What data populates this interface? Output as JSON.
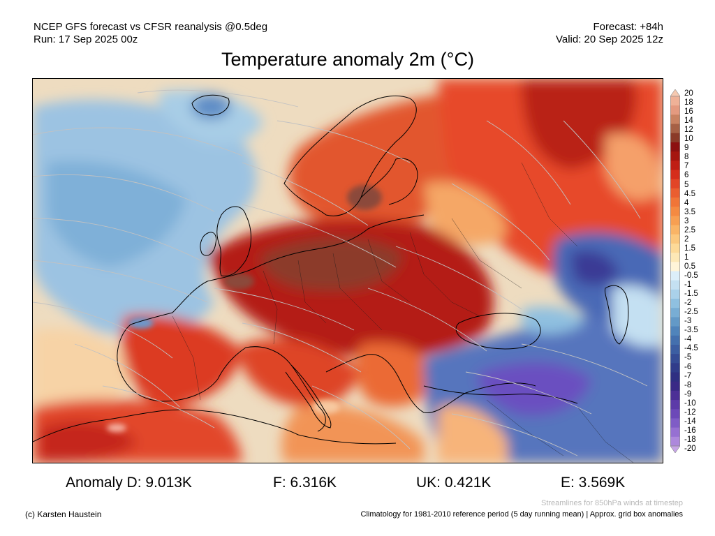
{
  "header": {
    "left_line1": "NCEP GFS forecast vs CFSR reanalysis @0.5deg",
    "left_line2": "Run: 17 Sep 2025 00z",
    "right_line1": "Forecast: +84h",
    "right_line2": "Valid: 20 Sep 2025 12z"
  },
  "title": "Temperature anomaly 2m (°C)",
  "map": {
    "region": "Europe",
    "field": "2m temperature anomaly",
    "overlay": "streamlines",
    "colors": {
      "ocean_cool": "#a9c8e2",
      "ocean_mild": "#e8dcc4",
      "warm_orange": "#f39a5a",
      "warm_red": "#d8341f",
      "hot_dark": "#9e1a12",
      "hot_brown": "#8b4a3a",
      "cold_blue": "#3f5fb0",
      "cold_purple": "#6a4fc0",
      "coastline": "#000000",
      "streamline": "#c8c8c8"
    }
  },
  "colorbar": {
    "labels": [
      "20",
      "18",
      "16",
      "14",
      "12",
      "10",
      "9",
      "8",
      "7",
      "6",
      "5",
      "4.5",
      "4",
      "3.5",
      "3",
      "2.5",
      "2",
      "1.5",
      "1",
      "0.5",
      "-0.5",
      "-1",
      "-1.5",
      "-2",
      "-2.5",
      "-3",
      "-3.5",
      "-4",
      "-4.5",
      "-5",
      "-6",
      "-7",
      "-8",
      "-9",
      "-10",
      "-12",
      "-14",
      "-16",
      "-18",
      "-20"
    ],
    "colors": [
      "#f6c9b0",
      "#efb197",
      "#e49a80",
      "#c98262",
      "#a66045",
      "#8a3a28",
      "#8c1010",
      "#a5150f",
      "#bf1e14",
      "#d52d1c",
      "#e24527",
      "#ea5e30",
      "#f07538",
      "#f48a42",
      "#f79f52",
      "#f9b466",
      "#fbc87e",
      "#fdda98",
      "#fde8b6",
      "#fff4d8",
      "#dceef9",
      "#c4e0f2",
      "#aad1ea",
      "#8fc0e0",
      "#78add4",
      "#6399c7",
      "#5084bb",
      "#4470ae",
      "#3c5ea2",
      "#354c95",
      "#303c8a",
      "#2f2f82",
      "#3a2a86",
      "#4c2f96",
      "#5c3aa8",
      "#6c49b8",
      "#7f5cc6",
      "#9670d2",
      "#ad88dc",
      "#c6a4e6"
    ]
  },
  "stats": [
    {
      "label": "Anomaly D: 9.013K"
    },
    {
      "label": "F: 6.316K"
    },
    {
      "label": "UK: 0.421K"
    },
    {
      "label": "E: 3.569K"
    }
  ],
  "footer": {
    "streamlines_note": "Streamlines for 850hPa winds at timestep",
    "credit": "(c) Karsten Haustein",
    "climatology": "Climatology for 1981-2010 reference period (5 day running mean) | Approx. grid box anomalies"
  }
}
